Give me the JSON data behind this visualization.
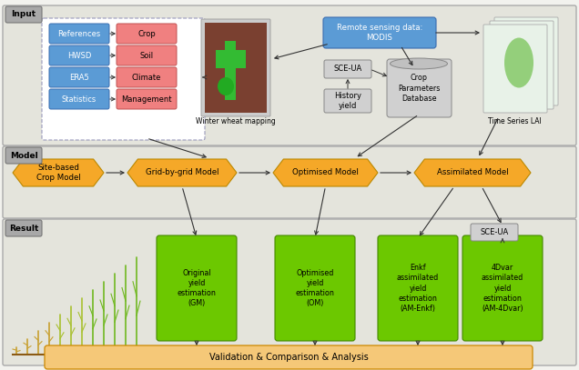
{
  "fig_w": 6.36,
  "fig_h": 4.07,
  "dpi": 100,
  "bg": "#f2f2ee",
  "sec_bg": "#e4e4dc",
  "blue": "#5b9bd5",
  "pink": "#f08080",
  "orange": "#f5a828",
  "green": "#6cc800",
  "gray_box": "#d0d0d0",
  "white": "#ffffff",
  "tab_bg": "#a8a8a8",
  "section_labels": [
    "Input",
    "Model",
    "Result"
  ],
  "input_blue_labels": [
    "References",
    "HWSD",
    "ERA5",
    "Statistics"
  ],
  "input_pink_labels": [
    "Crop",
    "Soil",
    "Climate",
    "Management"
  ],
  "model_labels": [
    "Site-based\nCrop Model",
    "Grid-by-grid Model",
    "Optimised Model",
    "Assimilated Model"
  ],
  "result_labels": [
    "Original\nyield\nestimation\n(GM)",
    "Optimised\nyield\nestimation\n(OM)",
    "Enkf\nassimilated\nyield\nestimation\n(AM-Enkf)",
    "4Dvar\nassimilated\nyield\nestimation\n(AM-4Dvar)"
  ],
  "validation_text": "Validation & Comparison & Analysis",
  "remote_sensing_text": "Remote sensing data:\nMODIS",
  "sce_ua_text": "SCE-UA",
  "history_yield_text": "History\nyield",
  "crop_param_text": "Crop\nParameters\nDatabase",
  "time_series_text": "Time Series LAI",
  "winter_wheat_text": "Winter wheat mapping"
}
